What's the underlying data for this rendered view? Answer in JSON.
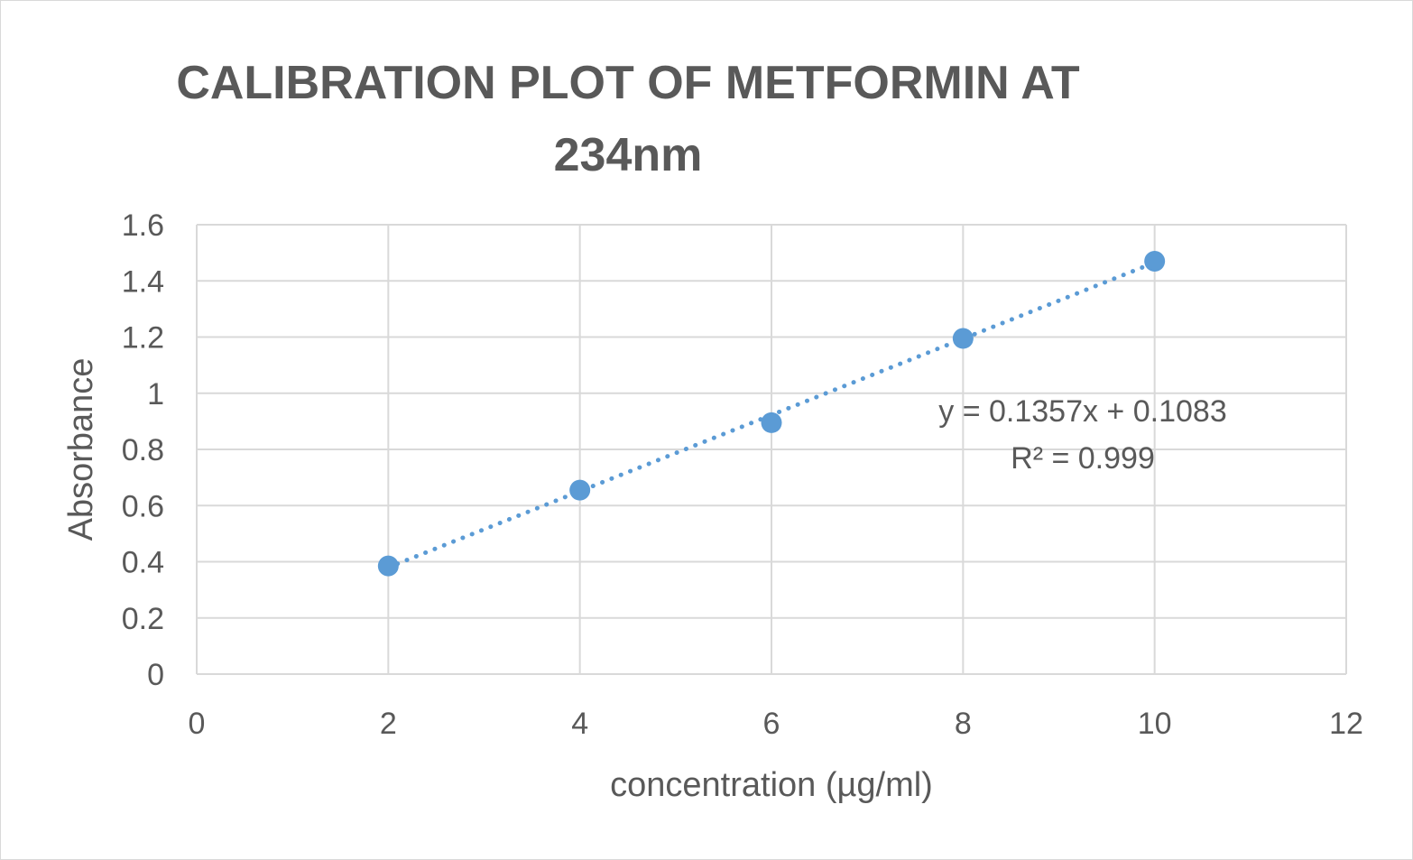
{
  "chart_data": {
    "type": "scatter",
    "title_lines": [
      "CALIBRATION PLOT OF METFORMIN AT",
      "234nm"
    ],
    "xlabel": "concentration (µg/ml)",
    "ylabel": "Absorbance",
    "xlim": [
      0,
      12
    ],
    "ylim": [
      0,
      1.6
    ],
    "x_ticks": [
      "0",
      "2",
      "4",
      "6",
      "8",
      "10",
      "12"
    ],
    "y_ticks": [
      "0",
      "0.2",
      "0.4",
      "0.6",
      "0.8",
      "1",
      "1.2",
      "1.4",
      "1.6"
    ],
    "grid": true,
    "legend": "none",
    "series": [
      {
        "x": [
          2,
          4,
          6,
          8,
          10
        ],
        "y": [
          0.385,
          0.655,
          0.895,
          1.195,
          1.47
        ],
        "color": "#5b9bd5"
      }
    ],
    "trendline": {
      "type": "linear",
      "style": "dotted",
      "slope": 0.1357,
      "intercept": 0.1083,
      "x_range": [
        2,
        10
      ],
      "color": "#5b9bd5"
    },
    "annotations": {
      "equation": "y = 0.1357x + 0.1083",
      "r_squared": "R² = 0.999"
    },
    "colors": {
      "grid": "#d9d9d9",
      "text": "#595959",
      "point": "#5b9bd5"
    }
  }
}
